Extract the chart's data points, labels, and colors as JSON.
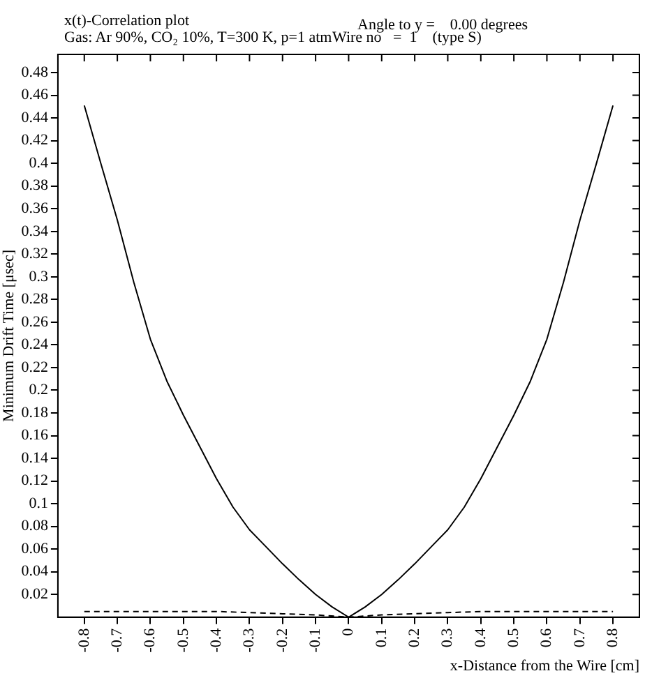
{
  "chart_data": {
    "type": "line",
    "title": "x(t)-Correlation plot",
    "subtitle": "Gas: Ar 90%, CO₂ 10%, T=300 K, p=1 atm",
    "annotations": [
      "Angle to y =    0.00 degrees",
      "Wire no   =  1    (type S)"
    ],
    "xlabel": "x-Distance from the Wire [cm]",
    "ylabel": "Minimum Drift Time [μsec]",
    "xlim": [
      -0.88,
      0.88
    ],
    "ylim": [
      0,
      0.496
    ],
    "xticks": [
      -0.8,
      -0.7,
      -0.6,
      -0.5,
      -0.4,
      -0.3,
      -0.2,
      -0.1,
      0,
      0.1,
      0.2,
      0.3,
      0.4,
      0.5,
      0.6,
      0.7,
      0.8
    ],
    "yticks": [
      0.02,
      0.04,
      0.06,
      0.08,
      0.1,
      0.12,
      0.14,
      0.16,
      0.18,
      0.2,
      0.22,
      0.24,
      0.26,
      0.28,
      0.3,
      0.32,
      0.34,
      0.36,
      0.38,
      0.4,
      0.42,
      0.44,
      0.46,
      0.48
    ],
    "grid": false,
    "legend": false,
    "marker": "none",
    "series": [
      {
        "color": "#000000",
        "line_style": "solid",
        "x": [
          -0.8,
          -0.75,
          -0.7,
          -0.65,
          -0.6,
          -0.55,
          -0.5,
          -0.45,
          -0.4,
          -0.35,
          -0.3,
          -0.25,
          -0.2,
          -0.15,
          -0.1,
          -0.05,
          0,
          0.05,
          0.1,
          0.15,
          0.2,
          0.25,
          0.3,
          0.35,
          0.4,
          0.45,
          0.5,
          0.55,
          0.6,
          0.65,
          0.7,
          0.75,
          0.8
        ],
        "values": [
          0.451,
          0.4,
          0.35,
          0.295,
          0.245,
          0.208,
          0.178,
          0.15,
          0.122,
          0.097,
          0.077,
          0.062,
          0.047,
          0.033,
          0.02,
          0.009,
          0,
          0.009,
          0.02,
          0.033,
          0.047,
          0.062,
          0.077,
          0.097,
          0.122,
          0.15,
          0.178,
          0.208,
          0.245,
          0.295,
          0.35,
          0.4,
          0.451
        ]
      },
      {
        "color": "#000000",
        "line_style": "dashed",
        "x": [
          -0.8,
          -0.7,
          -0.6,
          -0.5,
          -0.4,
          -0.3,
          -0.2,
          -0.1,
          0,
          0.1,
          0.2,
          0.3,
          0.4,
          0.5,
          0.6,
          0.7,
          0.8
        ],
        "values": [
          0.005,
          0.005,
          0.005,
          0.005,
          0.005,
          0.004,
          0.003,
          0.002,
          0,
          0.002,
          0.003,
          0.004,
          0.005,
          0.005,
          0.005,
          0.005,
          0.005
        ]
      }
    ]
  }
}
